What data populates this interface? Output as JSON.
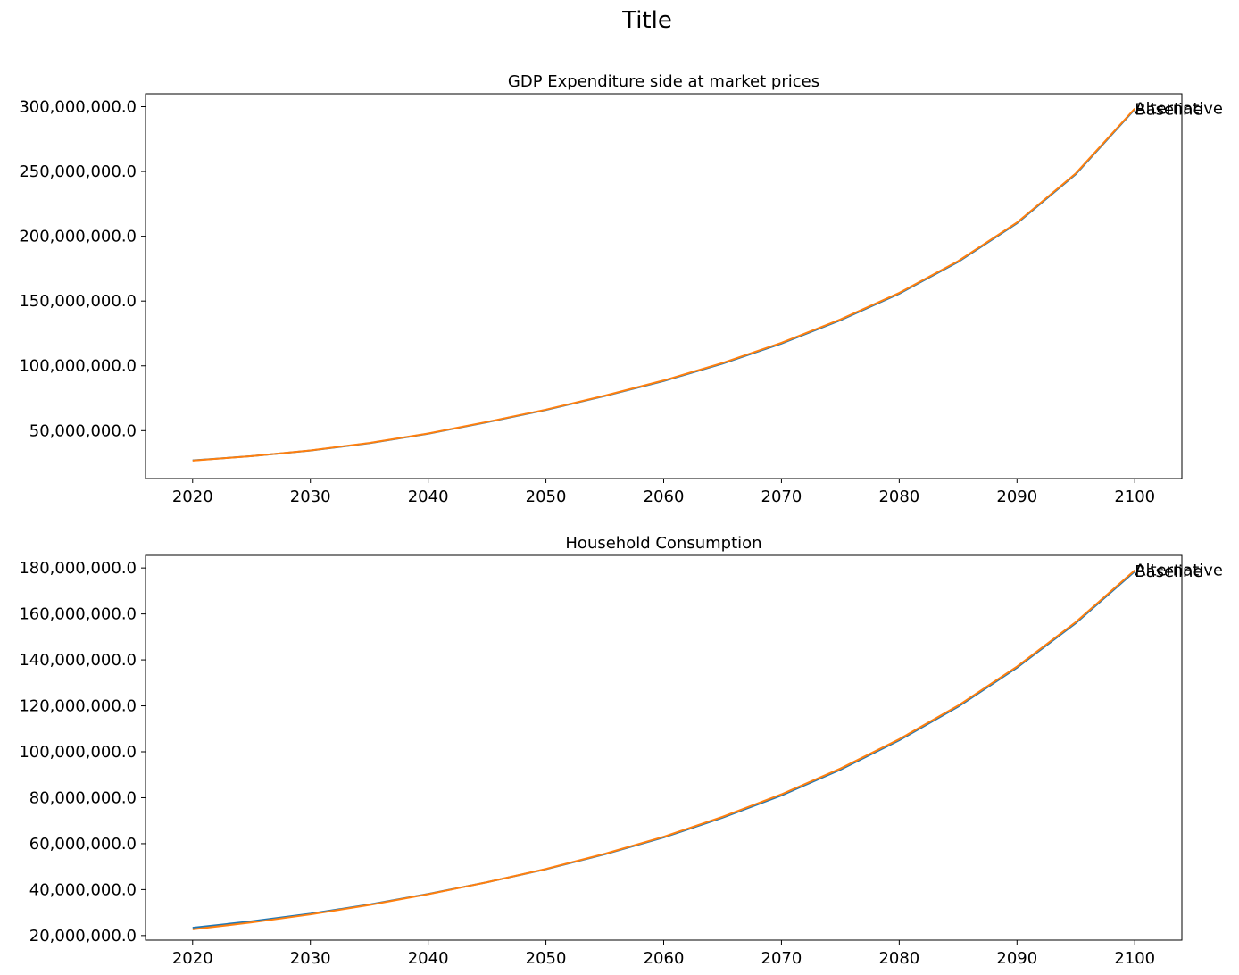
{
  "suptitle": "Title",
  "chart_data": [
    {
      "type": "line",
      "title": "GDP Expenditure side at market prices",
      "xlabel": "",
      "ylabel": "",
      "xlim": [
        2016,
        2104
      ],
      "ylim": [
        13000000,
        310000000
      ],
      "xticks": [
        2020,
        2030,
        2040,
        2050,
        2060,
        2070,
        2080,
        2090,
        2100
      ],
      "xtick_labels": [
        "2020",
        "2030",
        "2040",
        "2050",
        "2060",
        "2070",
        "2080",
        "2090",
        "2100"
      ],
      "yticks": [
        50000000,
        100000000,
        150000000,
        200000000,
        250000000,
        300000000
      ],
      "ytick_labels": [
        "50,000,000.0",
        "100,000,000.0",
        "150,000,000.0",
        "200,000,000.0",
        "250,000,000.0",
        "300,000,000.0"
      ],
      "grid": false,
      "legend": "none",
      "x": [
        2020,
        2025,
        2030,
        2035,
        2040,
        2045,
        2050,
        2055,
        2060,
        2065,
        2070,
        2075,
        2080,
        2085,
        2090,
        2095,
        2100
      ],
      "series": [
        {
          "name": "Baseline",
          "color": "#1f77b4",
          "values": [
            27000000,
            30300000,
            34600000,
            40300000,
            47600000,
            56500000,
            66000000,
            76700000,
            88300000,
            101700000,
            117200000,
            135200000,
            155700000,
            180200000,
            210000000,
            248000000,
            298000000
          ]
        },
        {
          "name": "Alternative",
          "color": "#ff7f0e",
          "values": [
            26900000,
            30300000,
            34700000,
            40500000,
            47800000,
            56700000,
            66200000,
            77000000,
            88700000,
            102200000,
            117800000,
            135800000,
            156300000,
            180800000,
            210600000,
            248600000,
            298500000
          ]
        }
      ]
    },
    {
      "type": "line",
      "title": "Household Consumption",
      "xlabel": "",
      "ylabel": "",
      "xlim": [
        2016,
        2104
      ],
      "ylim": [
        18000000,
        185500000
      ],
      "xticks": [
        2020,
        2030,
        2040,
        2050,
        2060,
        2070,
        2080,
        2090,
        2100
      ],
      "xtick_labels": [
        "2020",
        "2030",
        "2040",
        "2050",
        "2060",
        "2070",
        "2080",
        "2090",
        "2100"
      ],
      "yticks": [
        20000000,
        40000000,
        60000000,
        80000000,
        100000000,
        120000000,
        140000000,
        160000000,
        180000000
      ],
      "ytick_labels": [
        "20,000,000.0",
        "40,000,000.0",
        "60,000,000.0",
        "80,000,000.0",
        "100,000,000.0",
        "120,000,000.0",
        "140,000,000.0",
        "160,000,000.0",
        "180,000,000.0"
      ],
      "grid": false,
      "legend": "none",
      "x": [
        2020,
        2025,
        2030,
        2035,
        2040,
        2045,
        2050,
        2055,
        2060,
        2065,
        2070,
        2075,
        2080,
        2085,
        2090,
        2095,
        2100
      ],
      "series": [
        {
          "name": "Baseline",
          "color": "#1f77b4",
          "values": [
            23400000,
            26200000,
            29500000,
            33500000,
            38100000,
            43200000,
            48900000,
            55400000,
            62700000,
            71300000,
            81000000,
            92200000,
            105000000,
            119600000,
            136600000,
            156000000,
            178500000
          ]
        },
        {
          "name": "Alternative",
          "color": "#ff7f0e",
          "values": [
            22700000,
            25700000,
            29200000,
            33300000,
            38000000,
            43200000,
            49000000,
            55600000,
            63000000,
            71700000,
            81500000,
            92700000,
            105500000,
            120100000,
            137100000,
            156500000,
            179000000
          ]
        }
      ]
    }
  ]
}
